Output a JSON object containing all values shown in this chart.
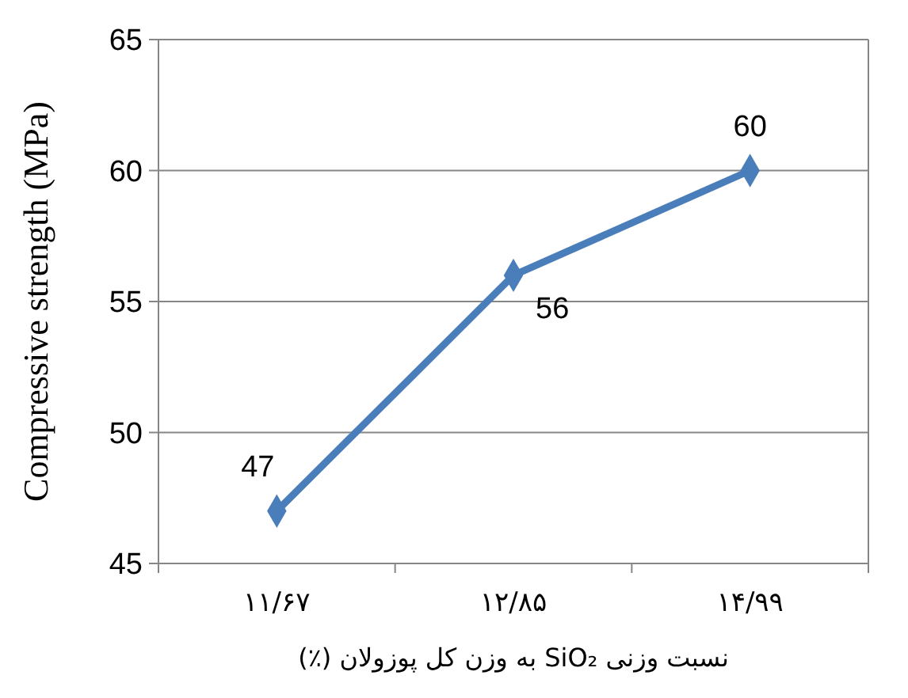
{
  "chart_data": {
    "type": "line",
    "xlabel": "نسبت وزنی SiO₂ به وزن کل پوزولان (٪)",
    "ylabel": "Compressive strength (MPa)",
    "categories": [
      "۱۱/۶۷",
      "۱۲/۸۵",
      "۱۴/۹۹"
    ],
    "series": [
      {
        "color": "#4a7ebb",
        "values": [
          47,
          56,
          60
        ]
      }
    ],
    "ylim": [
      45,
      65
    ],
    "yticks": [
      45,
      50,
      55,
      60,
      65
    ],
    "grid": "y",
    "marker": "diamond",
    "line_style": "solid",
    "data_labels": true
  }
}
